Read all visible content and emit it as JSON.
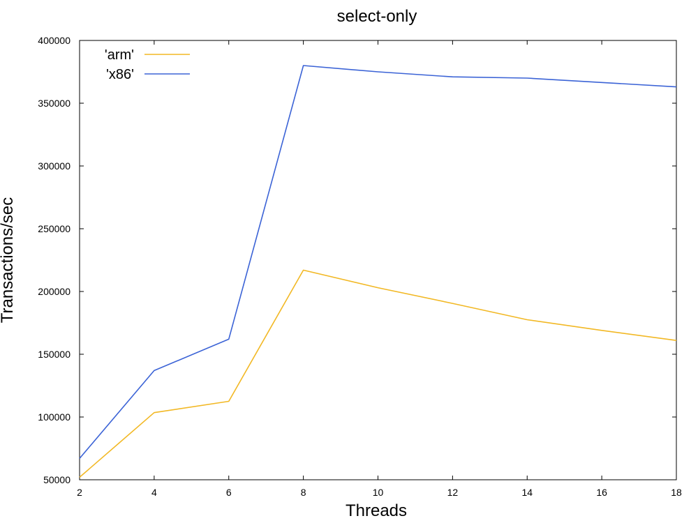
{
  "chart_data": {
    "type": "line",
    "title": "select-only",
    "xlabel": "Threads",
    "ylabel": "Transactions/sec",
    "xlim": [
      2,
      18
    ],
    "ylim": [
      50000,
      400000
    ],
    "xticks": [
      2,
      4,
      6,
      8,
      10,
      12,
      14,
      16,
      18
    ],
    "yticks": [
      50000,
      100000,
      150000,
      200000,
      250000,
      300000,
      350000,
      400000
    ],
    "x": [
      2,
      4,
      6,
      8,
      10,
      12,
      14,
      16,
      18
    ],
    "grid": false,
    "legend_position": "top-left",
    "series": [
      {
        "name": "'arm'",
        "color": "#f2b824",
        "values": [
          52000,
          103500,
          112500,
          217000,
          203000,
          190500,
          177500,
          169000,
          161000
        ]
      },
      {
        "name": "'x86'",
        "color": "#3b63d6",
        "values": [
          67000,
          137000,
          162000,
          380000,
          375000,
          371000,
          370000,
          366500,
          363000
        ]
      }
    ]
  }
}
